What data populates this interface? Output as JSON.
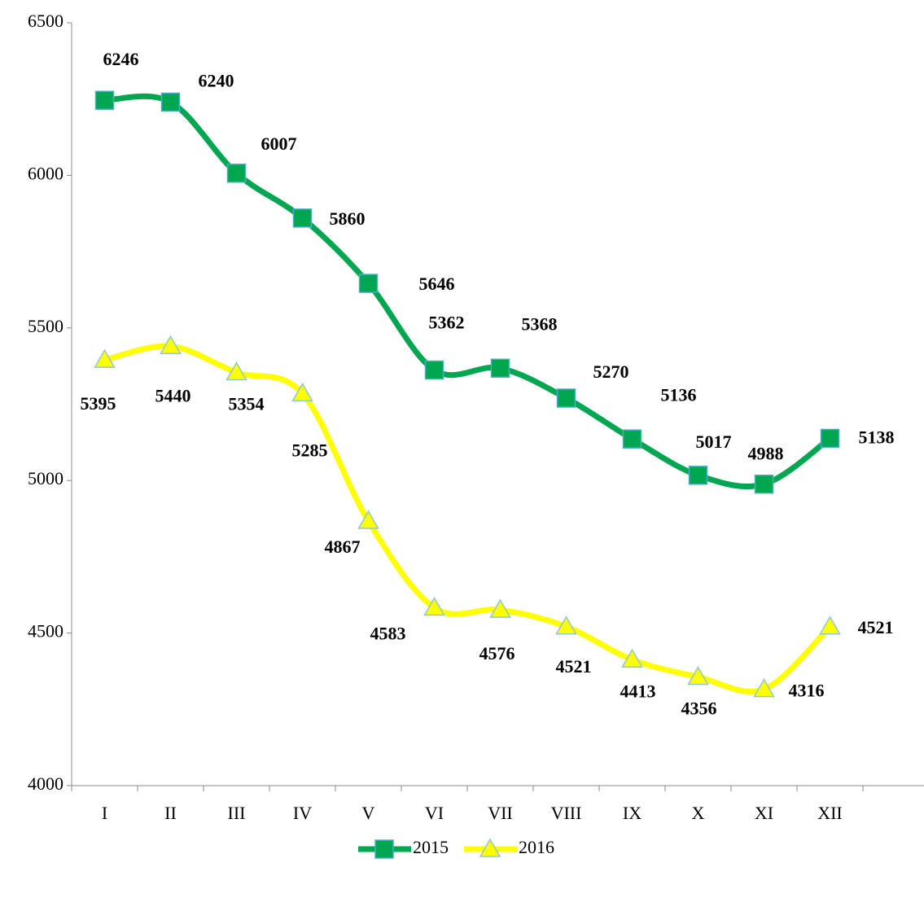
{
  "chart_data": {
    "type": "line",
    "categories": [
      "I",
      "II",
      "III",
      "IV",
      "V",
      "VI",
      "VII",
      "VIII",
      "IX",
      "X",
      "XI",
      "XII"
    ],
    "series": [
      {
        "name": "2015",
        "color": "#00a650",
        "marker": "square",
        "values": [
          6246,
          6240,
          6007,
          5860,
          5646,
          5362,
          5368,
          5270,
          5136,
          5017,
          4988,
          5138
        ]
      },
      {
        "name": "2016",
        "color": "#ffff00",
        "marker": "triangle",
        "values": [
          5395,
          5440,
          5354,
          5285,
          4867,
          4583,
          4576,
          4521,
          4413,
          4356,
          4316,
          4521
        ]
      }
    ],
    "ylim": [
      4000,
      6500
    ],
    "yticks": [
      4000,
      4500,
      5000,
      5500,
      6000,
      6500
    ],
    "smooth": true,
    "legend": "bottom"
  }
}
